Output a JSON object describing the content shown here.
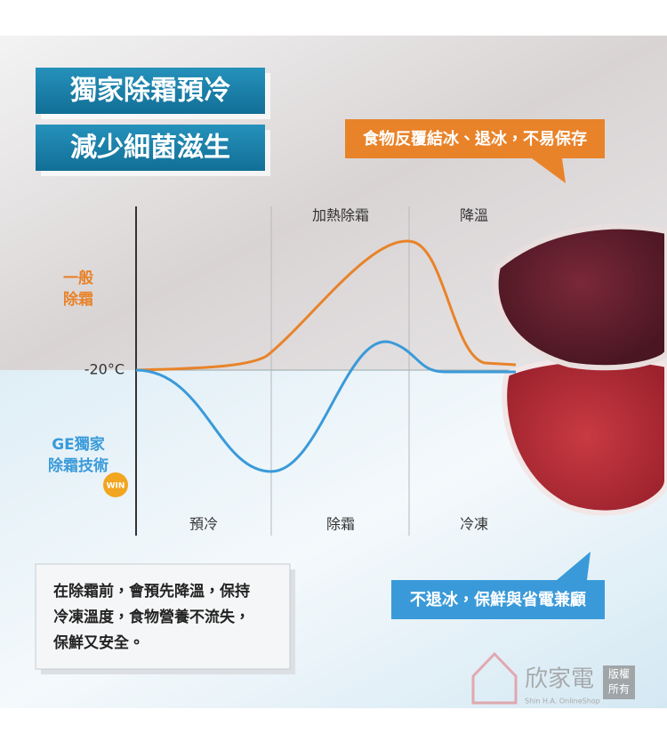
{
  "headline": {
    "line1": "獨家除霜預冷",
    "line2": "減少細菌滋生"
  },
  "callout_top": "食物反覆結冰、退冰，不易保存",
  "callout_bottom": "不退冰，保鮮與省電兼顧",
  "diagram": {
    "phases_top": [
      "加熱除霜",
      "降溫"
    ],
    "phases_bottom": [
      "預冷",
      "除霜",
      "冷凍"
    ],
    "general_label": [
      "一般",
      "除霜"
    ],
    "temperature_label": "-20°C",
    "ge_label": [
      "GE獨家",
      "除霜技術"
    ],
    "badge": "WIN"
  },
  "note": [
    "在除霜前，會預先降溫，保持",
    "冷凍溫度，食物營養不流失，",
    "保鮮又安全。"
  ],
  "watermark": {
    "brand": "欣家電",
    "rights": [
      "版權",
      "所有"
    ],
    "english": "Shin H.A. OnlineShop"
  }
}
